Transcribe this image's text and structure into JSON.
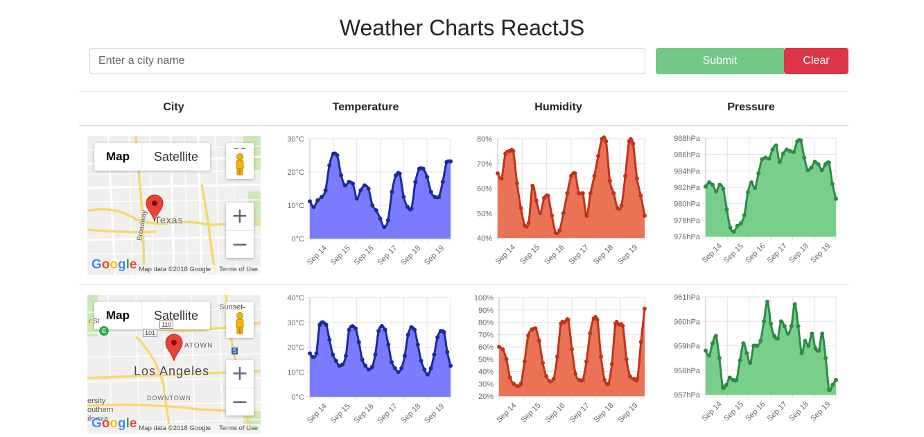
{
  "page": {
    "title": "Weather Charts ReactJS"
  },
  "search": {
    "placeholder": "Enter a city name",
    "value": ""
  },
  "buttons": {
    "submit": "Submit",
    "clear": "Clear"
  },
  "table": {
    "headers": [
      "City",
      "Temperature",
      "Humidity",
      "Pressure"
    ]
  },
  "map_ui": {
    "tab_map": "Map",
    "tab_satellite": "Satellite",
    "zoom_in": "+",
    "zoom_out": "−",
    "footer_data": "Map data ©2018 Google",
    "footer_terms": "Terms of Use",
    "google_logo": "Google"
  },
  "rows": [
    {
      "map": {
        "labels": {
          "main": "Texas",
          "street": "Broadway"
        }
      },
      "temperature": {
        "axis_labels": [
          "0°C",
          "10°C",
          "20°C",
          "30°C"
        ]
      },
      "humidity": {
        "axis_labels": [
          "40%",
          "50%",
          "60%",
          "70%",
          "80%"
        ]
      },
      "pressure": {
        "axis_labels": [
          "976hPa",
          "978hPa",
          "980hPa",
          "982hPa",
          "984hPa",
          "986hPa",
          "988hPa"
        ]
      }
    },
    {
      "map": {
        "labels": {
          "main": "Los Angeles",
          "downtown": "DOWNTOWN",
          "hwy1": "101",
          "hwy2": "110",
          "hwy3": "5",
          "area1": "ATOWN",
          "area2": "ersity",
          "area3": "outhern",
          "area4": "ifornia",
          "street1": "r St",
          "street2": "Sunset",
          "hospital": "E"
        }
      },
      "temperature": {
        "axis_labels": [
          "0°C",
          "10°C",
          "20°C",
          "30°C",
          "40°C"
        ]
      },
      "humidity": {
        "axis_labels": [
          "20%",
          "30%",
          "40%",
          "50%",
          "60%",
          "70%",
          "80%",
          "90%",
          "100%"
        ]
      },
      "pressure": {
        "axis_labels": [
          "957hPa",
          "958hPa",
          "959hPa",
          "960hPa",
          "961hPa"
        ]
      }
    }
  ],
  "colors": {
    "temperature_fill": "#7b7bff",
    "temperature_line": "#1a2a9a",
    "humidity_fill": "#ea7356",
    "humidity_line": "#c1321a",
    "pressure_fill": "#77cf8a",
    "pressure_line": "#2d8a45",
    "submit": "#73c686",
    "clear": "#dc3545"
  },
  "chart_data": [
    {
      "type": "area",
      "title": "",
      "metric": "temperature",
      "row": 0,
      "x_labels": [
        "Sep 14",
        "Sep 15",
        "Sep 16",
        "Sep 17",
        "Sep 18",
        "Sep 19"
      ],
      "ylim": [
        0,
        30
      ],
      "values": [
        11.2,
        9.5,
        11.5,
        12.5,
        14.5,
        22,
        25.5,
        25,
        19,
        16,
        17,
        16.5,
        12,
        14.5,
        16,
        15,
        10,
        8.5,
        6,
        3.5,
        5.5,
        14,
        19,
        19.5,
        12.5,
        9.5,
        9,
        17,
        21,
        21,
        18.5,
        14,
        12.5,
        12.5,
        17,
        23,
        23.2
      ]
    },
    {
      "type": "area",
      "title": "",
      "metric": "humidity",
      "row": 0,
      "x_labels": [
        "Sep 14",
        "Sep 15",
        "Sep 16",
        "Sep 17",
        "Sep 18",
        "Sep 19"
      ],
      "ylim": [
        40,
        80
      ],
      "values": [
        66,
        64,
        74,
        75,
        75,
        62,
        52,
        45,
        46,
        61,
        55,
        50,
        56,
        57,
        49,
        42,
        43,
        50,
        58,
        65,
        66,
        58,
        58,
        49,
        58,
        65,
        73,
        80,
        79,
        63,
        58,
        52,
        53,
        65,
        79,
        78,
        64,
        57,
        49
      ]
    },
    {
      "type": "area",
      "title": "",
      "metric": "pressure",
      "row": 0,
      "x_labels": [
        "Sep 14",
        "Sep 15",
        "Sep 16",
        "Sep 17",
        "Sep 18",
        "Sep 19"
      ],
      "ylim": [
        976,
        988
      ],
      "values": [
        982.1,
        982.6,
        982.3,
        981.5,
        982.3,
        981.8,
        979.3,
        977.1,
        976.6,
        977.3,
        977.6,
        978.6,
        981.4,
        982.6,
        981.9,
        983.7,
        985.4,
        985.6,
        985.5,
        986.6,
        987.1,
        985.1,
        986.1,
        986.6,
        986.4,
        986.3,
        987.6,
        987.7,
        985.6,
        984.1,
        984.4,
        985.1,
        984.8,
        984.1,
        984.8,
        985.0,
        982.4,
        980.6
      ]
    },
    {
      "type": "area",
      "title": "",
      "metric": "temperature",
      "row": 1,
      "x_labels": [
        "Sep 14",
        "Sep 15",
        "Sep 16",
        "Sep 17",
        "Sep 18",
        "Sep 19"
      ],
      "ylim": [
        0,
        40
      ],
      "values": [
        17.5,
        16,
        17.5,
        29,
        30,
        29,
        23,
        17,
        14.5,
        12.5,
        13,
        16.5,
        27,
        28.5,
        27.5,
        22,
        15,
        12.5,
        11,
        12,
        17,
        26.5,
        28.5,
        27,
        21,
        14,
        11.5,
        10,
        11.5,
        16.5,
        25,
        28,
        27,
        21,
        14.5,
        11,
        9,
        11.5,
        17,
        24,
        26.5,
        26,
        18,
        12.5
      ]
    },
    {
      "type": "area",
      "title": "",
      "metric": "humidity",
      "row": 1,
      "x_labels": [
        "Sep 14",
        "Sep 15",
        "Sep 16",
        "Sep 17",
        "Sep 18",
        "Sep 19"
      ],
      "ylim": [
        20,
        100
      ],
      "values": [
        60,
        58,
        50,
        35,
        30,
        28,
        30,
        48,
        69,
        74,
        75,
        65,
        47,
        36,
        32,
        34,
        52,
        79,
        80,
        82,
        58,
        38,
        33,
        33,
        48,
        71,
        83,
        82,
        52,
        33,
        30,
        46,
        79,
        78,
        77,
        50,
        36,
        34,
        34,
        64,
        91
      ]
    },
    {
      "type": "area",
      "title": "",
      "metric": "pressure",
      "row": 1,
      "x_labels": [
        "Sep 14",
        "Sep 15",
        "Sep 16",
        "Sep 17",
        "Sep 18",
        "Sep 19"
      ],
      "ylim": [
        957,
        961
      ],
      "values": [
        958.8,
        958.6,
        959.1,
        959.4,
        958.5,
        957.3,
        957.4,
        957.7,
        957.6,
        957.6,
        958.4,
        959.1,
        958.7,
        958.3,
        959.0,
        959.0,
        959.2,
        960.0,
        960.8,
        959.9,
        959.4,
        959.3,
        960.0,
        959.8,
        959.5,
        959.8,
        960.7,
        959.8,
        958.7,
        959.2,
        959.0,
        959.5,
        958.9,
        958.8,
        959.5,
        958.5,
        957.2,
        957.4,
        957.6
      ]
    }
  ]
}
